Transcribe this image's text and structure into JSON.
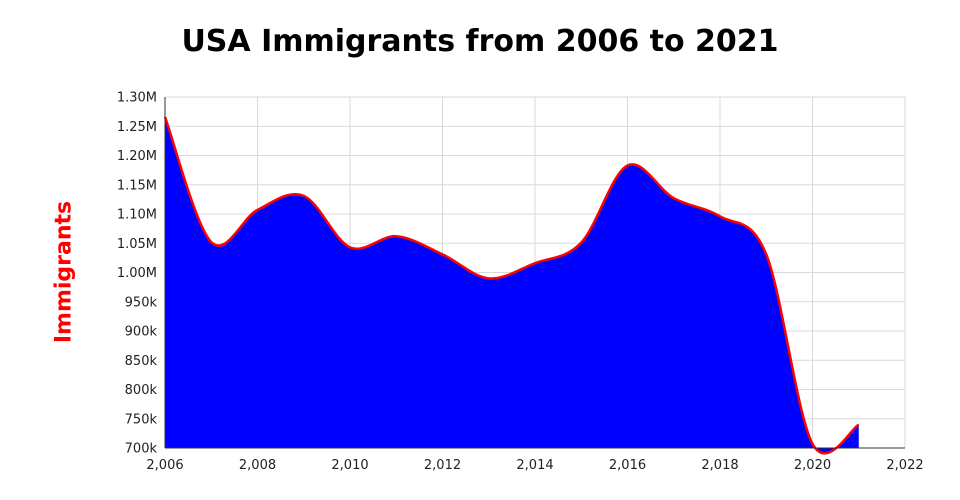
{
  "chart_data": {
    "type": "area",
    "title": "USA Immigrants from 2006 to 2021",
    "xlabel": "",
    "ylabel": "Immigrants",
    "x": [
      2006,
      2007,
      2008,
      2009,
      2010,
      2011,
      2012,
      2013,
      2014,
      2015,
      2016,
      2017,
      2018,
      2019,
      2020,
      2021
    ],
    "series": [
      {
        "values": [
          1266000,
          1052000,
          1107000,
          1131000,
          1043000,
          1062000,
          1031000,
          990000,
          1016000,
          1051000,
          1183000,
          1127000,
          1096000,
          1031000,
          707000,
          740000
        ]
      }
    ],
    "xlim": [
      2006,
      2022
    ],
    "ylim": [
      700000,
      1300000
    ],
    "x_ticks": [
      "2,006",
      "2,008",
      "2,010",
      "2,012",
      "2,014",
      "2,016",
      "2,018",
      "2,020",
      "2,022"
    ],
    "y_ticks": [
      "700k",
      "750k",
      "800k",
      "850k",
      "900k",
      "950k",
      "1.00M",
      "1.05M",
      "1.10M",
      "1.15M",
      "1.20M",
      "1.25M",
      "1.30M"
    ],
    "grid": true,
    "legend": "none",
    "colors": {
      "fill": "#0000ff",
      "line": "#ff0000",
      "ylabel": "#ff0000",
      "grid": "#d9d9d9"
    }
  }
}
